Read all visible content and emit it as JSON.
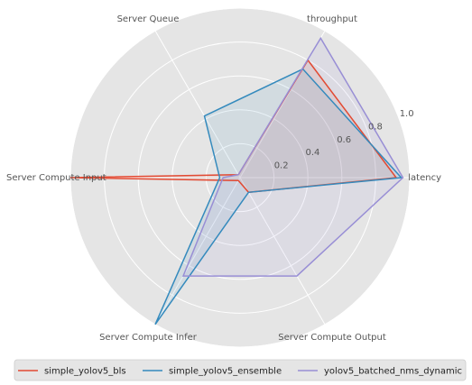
{
  "chart_data": {
    "type": "radar",
    "axes": [
      "latency",
      "throughput",
      "Server Queue",
      "Server Compute Input",
      "Server Compute Infer",
      "Server Compute Output"
    ],
    "rlim": [
      0,
      1.0
    ],
    "r_ticks": [
      "0.2",
      "0.4",
      "0.6",
      "0.8",
      "1.0"
    ],
    "r_tick_values": [
      0.2,
      0.4,
      0.6,
      0.8,
      1.0
    ],
    "grid": true,
    "legend_placement": "bottom",
    "series": [
      {
        "name": "simple_yolov5_bls",
        "color": "#e24a33",
        "values": [
          0.92,
          0.8,
          0.02,
          1.0,
          0.02,
          0.1
        ]
      },
      {
        "name": "simple_yolov5_ensemble",
        "color": "#348abd",
        "values": [
          0.95,
          0.74,
          0.42,
          0.12,
          1.0,
          0.1
        ]
      },
      {
        "name": "yolov5_batched_nms_dynamic",
        "color": "#988ed5",
        "values": [
          0.96,
          0.95,
          0.02,
          0.1,
          0.67,
          0.67
        ]
      }
    ]
  }
}
